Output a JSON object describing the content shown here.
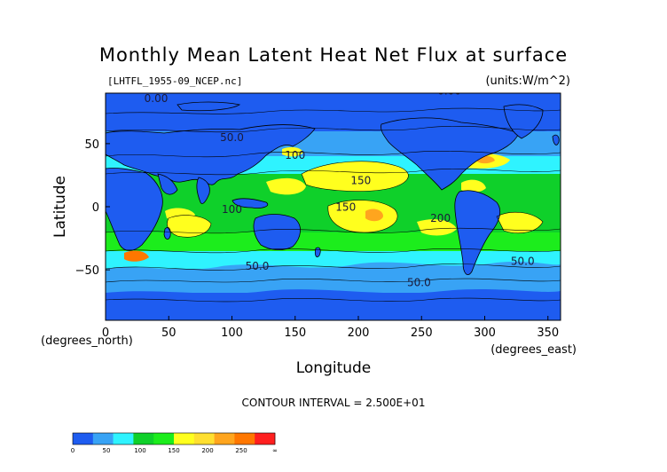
{
  "chart_data": {
    "type": "heatmap",
    "title": "Monthly Mean Latent Heat Net Flux at surface",
    "source_label": "[LHTFL_1955-09_NCEP.nc]",
    "units_label": "(units:W/m^2)",
    "xlabel": "Longitude",
    "ylabel": "Latitude",
    "x_unit_label": "(degrees_east)",
    "y_unit_label": "(degrees_north)",
    "xlim": [
      0,
      360
    ],
    "ylim": [
      -90,
      90
    ],
    "x_ticks": [
      0,
      50,
      100,
      150,
      200,
      250,
      300,
      350
    ],
    "y_ticks": [
      -50,
      0,
      50
    ],
    "contour_interval_text": "CONTOUR INTERVAL = 2.500E+01",
    "contour_labels": [
      {
        "text": "0.00",
        "lon": 40,
        "lat": 83
      },
      {
        "text": "0.00",
        "lon": 272,
        "lat": 89
      },
      {
        "text": "50.0",
        "lon": 100,
        "lat": 52
      },
      {
        "text": "100",
        "lon": 150,
        "lat": 38
      },
      {
        "text": "150",
        "lon": 202,
        "lat": 18
      },
      {
        "text": "100",
        "lon": 100,
        "lat": -5
      },
      {
        "text": "150",
        "lon": 190,
        "lat": -3
      },
      {
        "text": "200",
        "lon": 265,
        "lat": -12
      },
      {
        "text": "50.0",
        "lon": 120,
        "lat": -50
      },
      {
        "text": "50.0",
        "lon": 330,
        "lat": -46
      },
      {
        "text": "50.0",
        "lon": 248,
        "lat": -63
      }
    ],
    "colorbar": {
      "levels": [
        "0",
        "50",
        "100",
        "150",
        "200",
        "250",
        "∞"
      ],
      "colors": [
        "#1e5cf0",
        "#38a3f5",
        "#2ff3ff",
        "#0fd02a",
        "#1ced1c",
        "#ffff1e",
        "#ffdf30",
        "#ffa51e",
        "#ff7700",
        "#ff1f1f"
      ]
    },
    "field_bands": [
      {
        "lat_min": -90,
        "lat_max": -62,
        "level": "0-25"
      },
      {
        "lat_min": -62,
        "lat_max": -50,
        "level": "25-50"
      },
      {
        "lat_min": -50,
        "lat_max": -35,
        "level": "50-75"
      },
      {
        "lat_min": -35,
        "lat_max": -20,
        "level": "75-125"
      },
      {
        "lat_min": -20,
        "lat_max": 25,
        "level": "100-200"
      },
      {
        "lat_min": 25,
        "lat_max": 45,
        "level": "75-150"
      },
      {
        "lat_min": 45,
        "lat_max": 60,
        "level": "25-75"
      },
      {
        "lat_min": 60,
        "lat_max": 90,
        "level": "0-25"
      }
    ],
    "grid": false
  }
}
